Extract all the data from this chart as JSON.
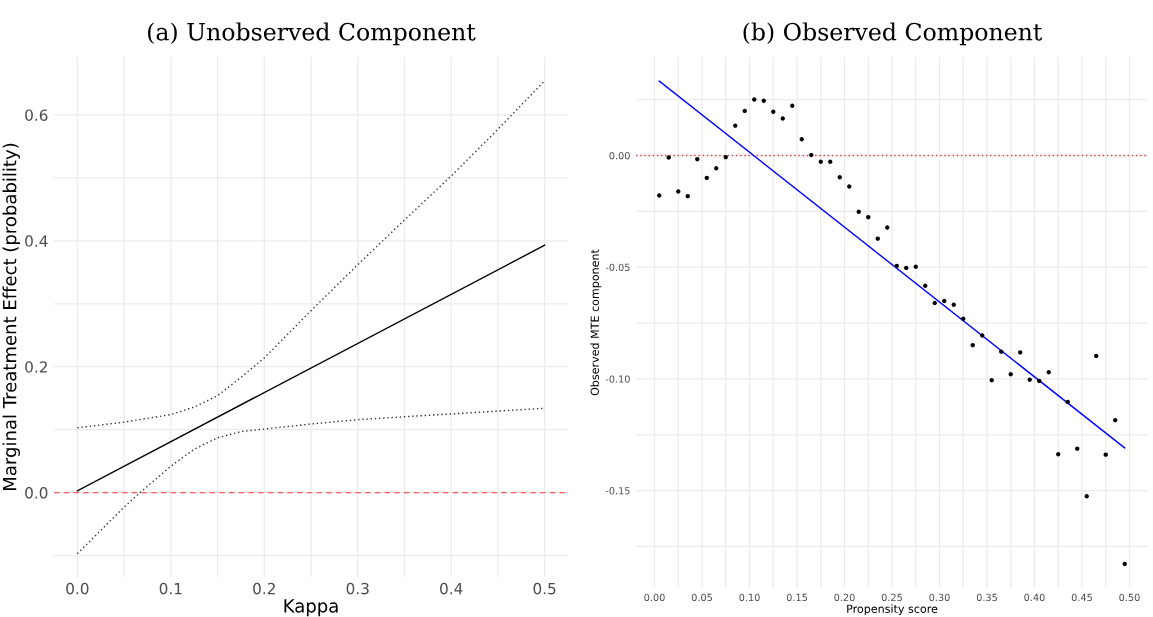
{
  "chart_data": [
    {
      "type": "line",
      "title": "(a) Unobserved Component",
      "xlabel": "Kappa",
      "ylabel": "Marginal Treatment Effect (probability)",
      "xlim": [
        -0.025,
        0.525
      ],
      "ylim": [
        -0.134,
        0.692
      ],
      "xticks": [
        {
          "value": 0.0,
          "label": "0.0"
        },
        {
          "value": 0.05,
          "label": null
        },
        {
          "value": 0.1,
          "label": "0.1"
        },
        {
          "value": 0.15,
          "label": null
        },
        {
          "value": 0.2,
          "label": "0.2"
        },
        {
          "value": 0.25,
          "label": null
        },
        {
          "value": 0.3,
          "label": "0.3"
        },
        {
          "value": 0.35,
          "label": null
        },
        {
          "value": 0.4,
          "label": "0.4"
        },
        {
          "value": 0.45,
          "label": null
        },
        {
          "value": 0.5,
          "label": "0.5"
        }
      ],
      "yticks": [
        {
          "value": -0.1,
          "label": null
        },
        {
          "value": 0.0,
          "label": "0.0"
        },
        {
          "value": 0.1,
          "label": null
        },
        {
          "value": 0.2,
          "label": "0.2"
        },
        {
          "value": 0.3,
          "label": null
        },
        {
          "value": 0.4,
          "label": "0.4"
        },
        {
          "value": 0.5,
          "label": null
        },
        {
          "value": 0.6,
          "label": "0.6"
        }
      ],
      "grid": true,
      "legend": false,
      "ref_lines": [
        {
          "axis": "y",
          "value": 0,
          "color": "#ff5a5a",
          "line_style": "dashed"
        }
      ],
      "series": [
        {
          "color": "#000000",
          "line_style": "solid",
          "x": [
            0.0,
            0.5
          ],
          "values": [
            0.003,
            0.393
          ]
        },
        {
          "color": "#333333",
          "line_style": "dotted",
          "x": [
            0.0,
            0.05,
            0.1,
            0.125,
            0.15,
            0.175,
            0.2,
            0.25,
            0.3,
            0.35,
            0.4,
            0.45,
            0.5
          ],
          "values": [
            0.103,
            0.112,
            0.124,
            0.136,
            0.154,
            0.183,
            0.214,
            0.289,
            0.362,
            0.433,
            0.503,
            0.577,
            0.654
          ]
        },
        {
          "color": "#333333",
          "line_style": "dotted",
          "x": [
            0.0,
            0.05,
            0.067,
            0.1,
            0.125,
            0.15,
            0.175,
            0.2,
            0.25,
            0.3,
            0.4,
            0.5
          ],
          "values": [
            -0.097,
            -0.023,
            0.0,
            0.042,
            0.069,
            0.087,
            0.097,
            0.101,
            0.109,
            0.116,
            0.125,
            0.134
          ]
        }
      ]
    },
    {
      "type": "scatter",
      "title": "(b) Observed Component",
      "xlabel": "Propensity score",
      "ylabel": "Observed MTE component",
      "xlim": [
        -0.0195,
        0.5195
      ],
      "ylim": [
        -0.1936,
        0.0441
      ],
      "xticks": [
        {
          "value": 0.0,
          "label": "0.00"
        },
        {
          "value": 0.025,
          "label": null
        },
        {
          "value": 0.05,
          "label": "0.05"
        },
        {
          "value": 0.075,
          "label": null
        },
        {
          "value": 0.1,
          "label": "0.10"
        },
        {
          "value": 0.125,
          "label": null
        },
        {
          "value": 0.15,
          "label": "0.15"
        },
        {
          "value": 0.175,
          "label": null
        },
        {
          "value": 0.2,
          "label": "0.20"
        },
        {
          "value": 0.225,
          "label": null
        },
        {
          "value": 0.25,
          "label": "0.25"
        },
        {
          "value": 0.275,
          "label": null
        },
        {
          "value": 0.3,
          "label": "0.30"
        },
        {
          "value": 0.325,
          "label": null
        },
        {
          "value": 0.35,
          "label": "0.35"
        },
        {
          "value": 0.375,
          "label": null
        },
        {
          "value": 0.4,
          "label": "0.40"
        },
        {
          "value": 0.425,
          "label": null
        },
        {
          "value": 0.45,
          "label": "0.45"
        },
        {
          "value": 0.475,
          "label": null
        },
        {
          "value": 0.5,
          "label": "0.50"
        }
      ],
      "yticks": [
        {
          "value": -0.175,
          "label": null
        },
        {
          "value": -0.15,
          "label": "-0.15"
        },
        {
          "value": -0.125,
          "label": null
        },
        {
          "value": -0.1,
          "label": "-0.10"
        },
        {
          "value": -0.075,
          "label": null
        },
        {
          "value": -0.05,
          "label": "-0.05"
        },
        {
          "value": -0.025,
          "label": null
        },
        {
          "value": 0.0,
          "label": "0.00"
        },
        {
          "value": 0.025,
          "label": null
        }
      ],
      "grid": true,
      "legend": false,
      "ref_lines": [
        {
          "axis": "y",
          "value": 0,
          "color": "#e04040",
          "line_style": "dotted"
        }
      ],
      "series": [
        {
          "color": "#000000",
          "marker": "circle",
          "x": [
            0.005,
            0.015,
            0.025,
            0.035,
            0.045,
            0.055,
            0.065,
            0.075,
            0.085,
            0.095,
            0.105,
            0.115,
            0.125,
            0.135,
            0.145,
            0.155,
            0.165,
            0.175,
            0.185,
            0.195,
            0.205,
            0.215,
            0.225,
            0.235,
            0.245,
            0.255,
            0.265,
            0.275,
            0.285,
            0.295,
            0.305,
            0.315,
            0.325,
            0.335,
            0.345,
            0.355,
            0.365,
            0.375,
            0.385,
            0.395,
            0.405,
            0.415,
            0.425,
            0.435,
            0.445,
            0.455,
            0.465,
            0.475,
            0.485,
            0.495
          ],
          "values": [
            -0.0179,
            -0.0009,
            -0.0161,
            -0.0182,
            -0.0016,
            -0.01,
            -0.0057,
            -0.0007,
            0.0134,
            0.0199,
            0.0251,
            0.0245,
            0.0196,
            0.0166,
            0.0223,
            0.0073,
            0.0002,
            -0.0028,
            -0.0028,
            -0.0097,
            -0.0139,
            -0.0252,
            -0.0276,
            -0.0372,
            -0.0322,
            -0.0494,
            -0.0503,
            -0.0498,
            -0.0583,
            -0.066,
            -0.0651,
            -0.0668,
            -0.0731,
            -0.0849,
            -0.0806,
            -0.1006,
            -0.0878,
            -0.0979,
            -0.0881,
            -0.1003,
            -0.1009,
            -0.097,
            -0.1337,
            -0.1103,
            -0.1312,
            -0.1525,
            -0.0897,
            -0.1339,
            -0.1185,
            -0.1828
          ]
        },
        {
          "type": "line",
          "color": "#0000ff",
          "line_style": "solid",
          "x": [
            0.005,
            0.495
          ],
          "values": [
            0.0333,
            -0.1309
          ]
        }
      ]
    }
  ]
}
